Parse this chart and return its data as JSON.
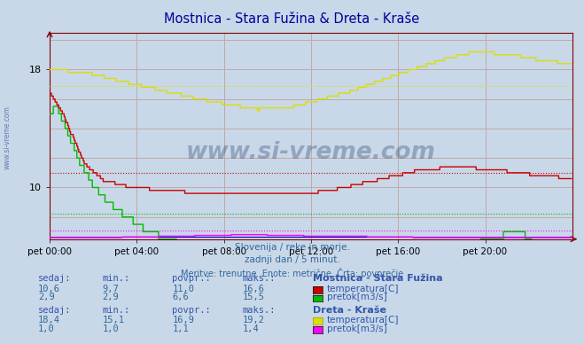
{
  "title": "Mostnica - Stara Fužina & Dreta - Kraše",
  "title_color": "#000099",
  "bg_color": "#c8d8e8",
  "plot_bg_color": "#c8d8e8",
  "watermark": "www.si-vreme.com",
  "subtitle_lines": [
    "Slovenija / reke in morje.",
    "zadnji dan / 5 minut.",
    "Meritve: trenutne  Enote: metrične  Črta: povprečje"
  ],
  "xlabel_ticks": [
    "pet 00:00",
    "pet 04:00",
    "pet 08:00",
    "pet 12:00",
    "pet 16:00",
    "pet 20:00"
  ],
  "xlabel_tick_positions": [
    0,
    96,
    192,
    288,
    384,
    480
  ],
  "total_points": 576,
  "ymin": 6.5,
  "ymax": 20.5,
  "yticks": [
    10,
    18
  ],
  "grid_color": "#c0a8a8",
  "spine_color": "#800000",
  "station1_name": "Mostnica - Stara Fužina",
  "station2_name": "Dreta - Kraše",
  "color_temp1": "#cc0000",
  "color_flow1": "#00bb00",
  "color_temp2": "#dddd00",
  "color_flow2": "#ff00ff",
  "color_blue_line": "#0000cc",
  "avg_temp1": 11.0,
  "avg_flow1_scaled": 8.2,
  "avg_temp2": 16.9,
  "avg_flow2_scaled": 7.1,
  "sedaj1_temp": "10,6",
  "min1_temp": "9,7",
  "povpr1_temp": "11,0",
  "maks1_temp": "16,6",
  "sedaj1_flow": "2,9",
  "min1_flow": "2,9",
  "povpr1_flow": "6,6",
  "maks1_flow": "15,5",
  "sedaj2_temp": "18,4",
  "min2_temp": "15,1",
  "povpr2_temp": "16,9",
  "maks2_temp": "19,2",
  "sedaj2_flow": "1,0",
  "min2_flow": "1,0",
  "povpr2_flow": "1,1",
  "maks2_flow": "1,4",
  "text_color_label": "#3355aa",
  "text_color_value": "#336699",
  "text_color_subtitle": "#336699"
}
